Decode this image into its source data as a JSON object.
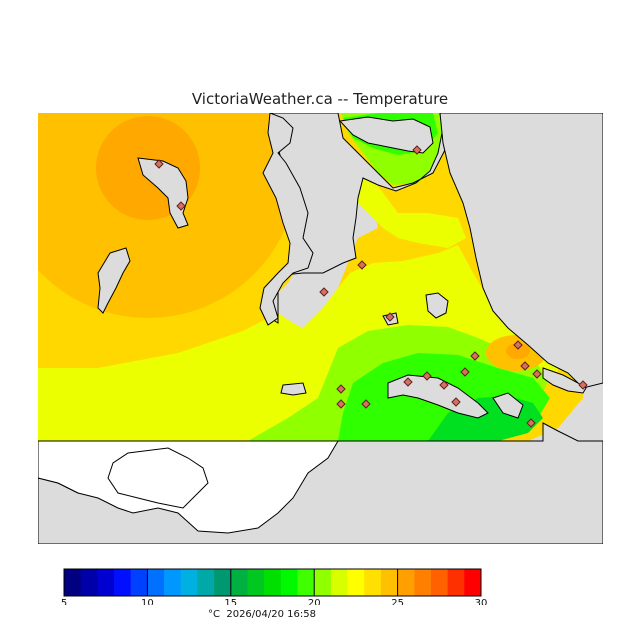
{
  "title": "VictoriaWeather.ca -- Temperature",
  "colors": {
    "land_bg": "#dcdcdc",
    "water_white": "#ffffff",
    "coast": "#000000",
    "station_fill": "#d87060",
    "station_stroke": "#602020"
  },
  "temperature_zones": [
    {
      "value": 24,
      "color": "#ffa800"
    },
    {
      "value": 23,
      "color": "#ffc000"
    },
    {
      "value": 22,
      "color": "#ffd800"
    },
    {
      "value": 21,
      "color": "#ecff00"
    },
    {
      "value": 20,
      "color": "#90ff00"
    },
    {
      "value": 19,
      "color": "#30ff00"
    },
    {
      "value": 18,
      "color": "#00e020"
    }
  ],
  "colorbar": {
    "min": 5,
    "max": 30,
    "ticks": [
      "5",
      "10",
      "15",
      "20",
      "25",
      "30"
    ],
    "colors": [
      "#000080",
      "#0000a8",
      "#0000d0",
      "#0010ff",
      "#0040ff",
      "#0070ff",
      "#0098ff",
      "#00b0e0",
      "#00a8a8",
      "#009870",
      "#00b040",
      "#00c820",
      "#00e000",
      "#00f800",
      "#40ff00",
      "#90ff00",
      "#d8ff00",
      "#ffff00",
      "#ffe000",
      "#ffc000",
      "#ffa000",
      "#ff8000",
      "#ff6000",
      "#ff3000",
      "#ff0000"
    ]
  },
  "footer": {
    "unit": "°C",
    "timestamp": "2026/04/20 16:58"
  }
}
